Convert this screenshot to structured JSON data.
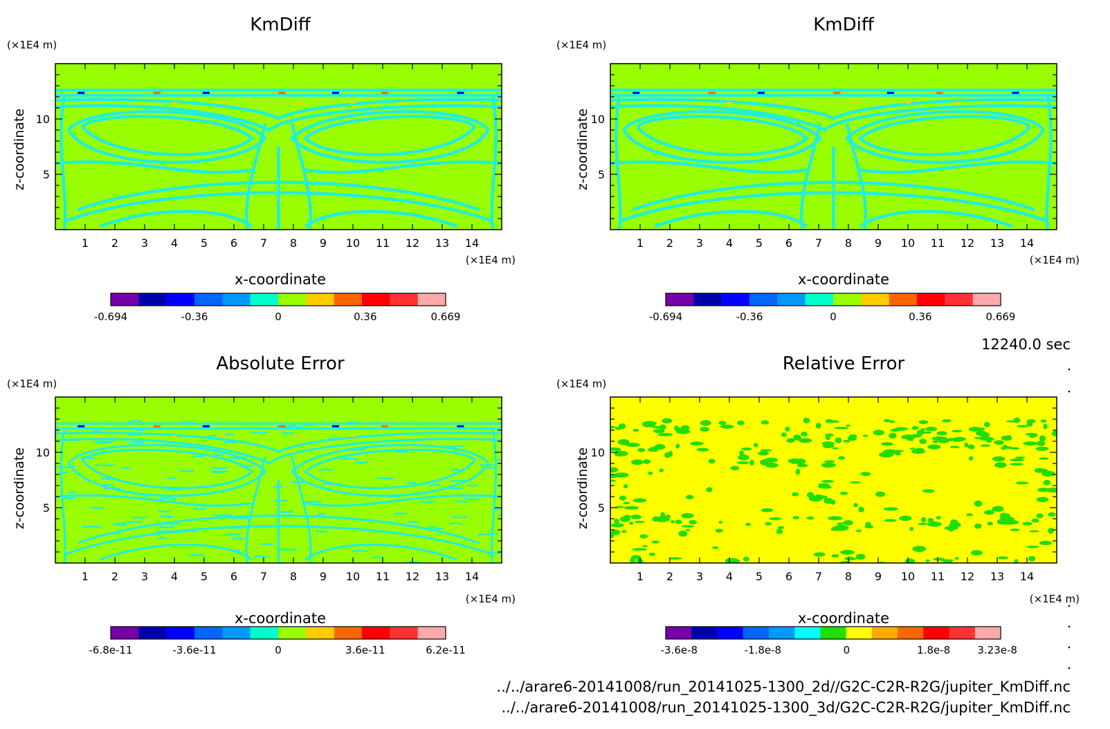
{
  "panels": [
    {
      "title": "KmDiff",
      "style": "kmdiff",
      "cbar_labels": [
        "-0.694",
        "-0.36",
        "0",
        "0.36",
        "0.669"
      ]
    },
    {
      "title": "KmDiff",
      "style": "kmdiff",
      "cbar_labels": [
        "-0.694",
        "-0.36",
        "0",
        "0.36",
        "0.669"
      ]
    },
    {
      "title": "Absolute Error",
      "style": "abs",
      "cbar_labels": [
        "-6.8e-11",
        "-3.6e-11",
        "0",
        "3.6e-11",
        "6.2e-11"
      ]
    },
    {
      "title": "Relative Error",
      "style": "rel",
      "cbar_labels": [
        "-3.6e-8",
        "-1.8e-8",
        "0",
        "1.8e-8",
        "3.23e-8"
      ]
    }
  ],
  "axes": {
    "xlabel": "x-coordinate",
    "ylabel": "z-coordinate",
    "x_unit": "(×1E4 m)",
    "y_unit": "(×1E4 m)",
    "x_ticks": [
      "1",
      "2",
      "3",
      "4",
      "5",
      "6",
      "7",
      "8",
      "9",
      "10",
      "11",
      "12",
      "13",
      "14"
    ],
    "y_ticks": [
      "5",
      "10"
    ]
  },
  "time_label": "12240.0 sec",
  "footer": {
    "line1": "../../arare6-20141008/run_20141025-1300_2d//G2C-C2R-R2G/jupiter_KmDiff.nc",
    "line2": "../../arare6-20141008/run_20141025-1300_3d/G2C-C2R-R2G/jupiter_KmDiff.nc"
  },
  "colors": {
    "kmdiff_bg": "#99ff00",
    "kmdiff_contour": "#22eedd",
    "abs_bg": "#99ff00",
    "abs_contour": "#22eedd",
    "rel_bg": "#ffff00",
    "rel_contour": "#22dd00",
    "colorbar": [
      "#7700aa",
      "#0000aa",
      "#0000ff",
      "#0066ff",
      "#0099ff",
      "#00ffcc",
      "#99ff00",
      "#ffcc00",
      "#ff6600",
      "#ff0000",
      "#ff3333",
      "#ffaaaa"
    ],
    "colorbar_rel": [
      "#7700aa",
      "#0000aa",
      "#0000ff",
      "#0066ff",
      "#0099ff",
      "#00ffff",
      "#22dd00",
      "#ffff00",
      "#ffaa00",
      "#ff6600",
      "#ff0000",
      "#ff3333",
      "#ffaaaa"
    ]
  },
  "chart_data": [
    {
      "type": "heatmap",
      "title": "KmDiff",
      "xlabel": "x-coordinate",
      "ylabel": "z-coordinate",
      "x_unit": "(×1E4 m)",
      "y_unit": "(×1E4 m)",
      "xlim": [
        0,
        15
      ],
      "ylim": [
        0,
        15
      ],
      "colorbar_range": [
        -0.694,
        0.669
      ],
      "colorbar_ticks": [
        -0.694,
        -0.36,
        0,
        0.36,
        0.669
      ]
    },
    {
      "type": "heatmap",
      "title": "KmDiff",
      "xlabel": "x-coordinate",
      "ylabel": "z-coordinate",
      "x_unit": "(×1E4 m)",
      "y_unit": "(×1E4 m)",
      "xlim": [
        0,
        15
      ],
      "ylim": [
        0,
        15
      ],
      "colorbar_range": [
        -0.694,
        0.669
      ],
      "colorbar_ticks": [
        -0.694,
        -0.36,
        0,
        0.36,
        0.669
      ]
    },
    {
      "type": "heatmap",
      "title": "Absolute Error",
      "xlabel": "x-coordinate",
      "ylabel": "z-coordinate",
      "x_unit": "(×1E4 m)",
      "y_unit": "(×1E4 m)",
      "xlim": [
        0,
        15
      ],
      "ylim": [
        0,
        15
      ],
      "colorbar_range": [
        -6.8e-11,
        6.2e-11
      ],
      "colorbar_ticks": [
        -6.8e-11,
        -3.6e-11,
        0,
        3.6e-11,
        6.2e-11
      ]
    },
    {
      "type": "heatmap",
      "title": "Relative Error",
      "xlabel": "x-coordinate",
      "ylabel": "z-coordinate",
      "x_unit": "(×1E4 m)",
      "y_unit": "(×1E4 m)",
      "xlim": [
        0,
        15
      ],
      "ylim": [
        0,
        15
      ],
      "colorbar_range": [
        -3.6e-08,
        3.23e-08
      ],
      "colorbar_ticks": [
        -3.6e-08,
        -1.8e-08,
        0,
        1.8e-08,
        3.23e-08
      ]
    }
  ]
}
